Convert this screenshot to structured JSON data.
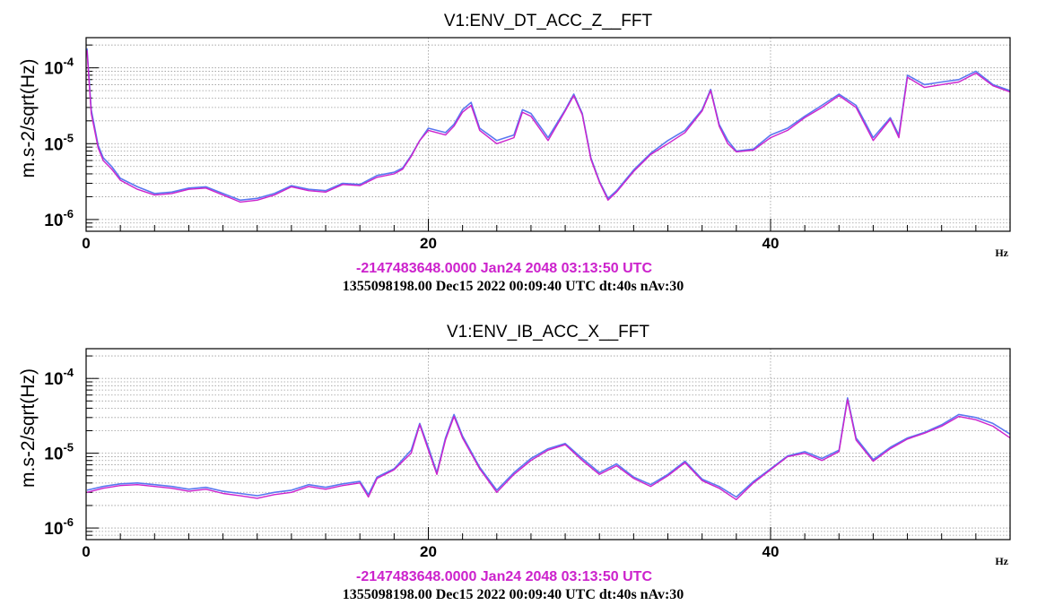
{
  "chart_data": [
    {
      "type": "line",
      "title": "V1:ENV_DT_ACC_Z__FFT",
      "ylabel": "m.s-2/sqrt(Hz)",
      "xunit": "Hz",
      "xlim": [
        0,
        54
      ],
      "ylim": [
        7e-07,
        0.00025
      ],
      "yscale": "log",
      "grid": true,
      "x_ticks": [
        {
          "value": 0,
          "label": "0"
        },
        {
          "value": 20,
          "label": "20"
        },
        {
          "value": 40,
          "label": "40"
        }
      ],
      "y_ticks": [
        {
          "value": 1e-06,
          "base": "10",
          "exp": "-6"
        },
        {
          "value": 1e-05,
          "base": "10",
          "exp": "-5"
        },
        {
          "value": 0.0001,
          "base": "10",
          "exp": "-4"
        }
      ],
      "caption_line1": "-2147483648.0000 Jan24 2048 03:13:50 UTC",
      "caption_line2": "1355098198.00 Dec15 2022 00:09:40 UTC dt:40s nAv:30",
      "colors": {
        "reference": "#5a78f0",
        "current": "#cc22cc"
      },
      "series": [
        {
          "x": [
            0.05,
            0.3,
            0.7,
            1,
            1.5,
            2,
            3,
            4,
            5,
            6,
            7,
            8,
            9,
            10,
            11,
            12,
            13,
            14,
            15,
            16,
            17,
            18,
            18.5,
            19,
            19.5,
            20,
            21,
            21.5,
            22,
            22.5,
            23,
            24,
            25,
            25.5,
            26,
            27,
            28,
            28.5,
            29,
            29.5,
            30,
            30.5,
            31,
            32,
            33,
            34,
            35,
            36,
            36.5,
            37,
            37.5,
            38,
            39,
            40,
            41,
            42,
            43,
            44,
            45,
            46,
            47,
            47.5,
            48,
            49,
            50,
            51,
            52,
            53,
            54
          ],
          "y": [
            0.00018,
            2.8e-05,
            9.5e-06,
            6.5e-06,
            5e-06,
            3.5e-06,
            2.7e-06,
            2.2e-06,
            2.3e-06,
            2.6e-06,
            2.7e-06,
            2.2e-06,
            1.8e-06,
            1.9e-06,
            2.2e-06,
            2.8e-06,
            2.5e-06,
            2.4e-06,
            3e-06,
            2.9e-06,
            3.8e-06,
            4.2e-06,
            4.8e-06,
            7e-06,
            1.1e-05,
            1.6e-05,
            1.4e-05,
            1.8e-05,
            2.8e-05,
            3.5e-05,
            1.6e-05,
            1.1e-05,
            1.3e-05,
            2.8e-05,
            2.5e-05,
            1.2e-05,
            2.8e-05,
            4.5e-05,
            2.5e-05,
            6.5e-06,
            3.2e-06,
            1.9e-06,
            2.4e-06,
            4.5e-06,
            7.5e-06,
            1.1e-05,
            1.5e-05,
            2.8e-05,
            5.2e-05,
            1.8e-05,
            1.1e-05,
            8e-06,
            8.5e-06,
            1.3e-05,
            1.6e-05,
            2.3e-05,
            3.2e-05,
            4.5e-05,
            3.2e-05,
            1.2e-05,
            2.2e-05,
            1.3e-05,
            8e-05,
            6e-05,
            6.5e-05,
            7e-05,
            9e-05,
            6e-05,
            5e-05
          ]
        },
        {
          "x": [
            0.05,
            0.3,
            0.7,
            1,
            1.5,
            2,
            3,
            4,
            5,
            6,
            7,
            8,
            9,
            10,
            11,
            12,
            13,
            14,
            15,
            16,
            17,
            18,
            18.5,
            19,
            19.5,
            20,
            21,
            21.5,
            22,
            22.5,
            23,
            24,
            25,
            25.5,
            26,
            27,
            28,
            28.5,
            29,
            29.5,
            30,
            30.5,
            31,
            32,
            33,
            34,
            35,
            36,
            36.5,
            37,
            37.5,
            38,
            39,
            40,
            41,
            42,
            43,
            44,
            45,
            46,
            47,
            47.5,
            48,
            49,
            50,
            51,
            52,
            53,
            54
          ],
          "y": [
            0.00017,
            2.5e-05,
            8.8e-06,
            6e-06,
            4.6e-06,
            3.3e-06,
            2.5e-06,
            2.1e-06,
            2.2e-06,
            2.5e-06,
            2.6e-06,
            2.1e-06,
            1.7e-06,
            1.8e-06,
            2.1e-06,
            2.7e-06,
            2.4e-06,
            2.3e-06,
            2.9e-06,
            2.8e-06,
            3.6e-06,
            4e-06,
            4.6e-06,
            6.8e-06,
            1.1e-05,
            1.5e-05,
            1.3e-05,
            1.7e-05,
            2.6e-05,
            3.2e-05,
            1.5e-05,
            1e-05,
            1.2e-05,
            2.6e-05,
            2.3e-05,
            1.1e-05,
            2.7e-05,
            4.3e-05,
            2.4e-05,
            6.2e-06,
            3.1e-06,
            1.8e-06,
            2.3e-06,
            4.3e-06,
            7.2e-06,
            1e-05,
            1.4e-05,
            2.7e-05,
            5e-05,
            1.7e-05,
            1e-05,
            7.8e-06,
            8.2e-06,
            1.2e-05,
            1.5e-05,
            2.2e-05,
            3e-05,
            4.3e-05,
            3e-05,
            1.1e-05,
            2.1e-05,
            1.2e-05,
            7.5e-05,
            5.5e-05,
            6e-05,
            6.5e-05,
            8.5e-05,
            5.8e-05,
            4.8e-05
          ]
        }
      ]
    },
    {
      "type": "line",
      "title": "V1:ENV_IB_ACC_X__FFT",
      "ylabel": "m.s-2/sqrt(Hz)",
      "xunit": "Hz",
      "xlim": [
        0,
        54
      ],
      "ylim": [
        7e-07,
        0.00025
      ],
      "yscale": "log",
      "grid": true,
      "x_ticks": [
        {
          "value": 0,
          "label": "0"
        },
        {
          "value": 20,
          "label": "20"
        },
        {
          "value": 40,
          "label": "40"
        }
      ],
      "y_ticks": [
        {
          "value": 1e-06,
          "base": "10",
          "exp": "-6"
        },
        {
          "value": 1e-05,
          "base": "10",
          "exp": "-5"
        },
        {
          "value": 0.0001,
          "base": "10",
          "exp": "-4"
        }
      ],
      "caption_line1": "-2147483648.0000 Jan24 2048 03:13:50 UTC",
      "caption_line2": "1355098198.00 Dec15 2022 00:09:40 UTC dt:40s nAv:30",
      "colors": {
        "reference": "#5a78f0",
        "current": "#cc22cc"
      },
      "series": [
        {
          "x": [
            0.05,
            1,
            2,
            3,
            4,
            5,
            6,
            7,
            8,
            9,
            10,
            11,
            12,
            13,
            14,
            15,
            16,
            16.5,
            17,
            18,
            19,
            19.5,
            20,
            20.5,
            21,
            21.5,
            22,
            23,
            24,
            25,
            26,
            27,
            28,
            29,
            30,
            31,
            32,
            33,
            34,
            35,
            36,
            37,
            38,
            39,
            40,
            41,
            42,
            43,
            44,
            44.5,
            45,
            46,
            47,
            48,
            49,
            50,
            51,
            52,
            53,
            54
          ],
          "y": [
            3.2e-06,
            3.6e-06,
            3.9e-06,
            4e-06,
            3.8e-06,
            3.6e-06,
            3.3e-06,
            3.5e-06,
            3.1e-06,
            2.9e-06,
            2.7e-06,
            3e-06,
            3.2e-06,
            3.8e-06,
            3.5e-06,
            3.9e-06,
            4.2e-06,
            2.8e-06,
            4.8e-06,
            6.2e-06,
            1.1e-05,
            2.5e-05,
            1.2e-05,
            5.5e-06,
            1.6e-05,
            3.3e-05,
            1.7e-05,
            6.5e-06,
            3.2e-06,
            5.5e-06,
            8.5e-06,
            1.15e-05,
            1.35e-05,
            8.5e-06,
            5.5e-06,
            7.2e-06,
            4.8e-06,
            3.8e-06,
            5.2e-06,
            7.8e-06,
            4.5e-06,
            3.6e-06,
            2.6e-06,
            4.2e-06,
            6.2e-06,
            9.2e-06,
            1.05e-05,
            8.5e-06,
            1.1e-05,
            5.5e-05,
            1.6e-05,
            8.2e-06,
            1.2e-05,
            1.6e-05,
            1.9e-05,
            2.4e-05,
            3.3e-05,
            3e-05,
            2.5e-05,
            1.8e-05
          ]
        },
        {
          "x": [
            0.05,
            1,
            2,
            3,
            4,
            5,
            6,
            7,
            8,
            9,
            10,
            11,
            12,
            13,
            14,
            15,
            16,
            16.5,
            17,
            18,
            19,
            19.5,
            20,
            20.5,
            21,
            21.5,
            22,
            23,
            24,
            25,
            26,
            27,
            28,
            29,
            30,
            31,
            32,
            33,
            34,
            35,
            36,
            37,
            38,
            39,
            40,
            41,
            42,
            43,
            44,
            44.5,
            45,
            46,
            47,
            48,
            49,
            50,
            51,
            52,
            53,
            54
          ],
          "y": [
            3e-06,
            3.4e-06,
            3.7e-06,
            3.8e-06,
            3.6e-06,
            3.4e-06,
            3.1e-06,
            3.3e-06,
            2.9e-06,
            2.7e-06,
            2.5e-06,
            2.8e-06,
            3e-06,
            3.6e-06,
            3.3e-06,
            3.7e-06,
            4e-06,
            2.6e-06,
            4.6e-06,
            6e-06,
            1e-05,
            2.4e-05,
            1.1e-05,
            5.2e-06,
            1.5e-05,
            3.1e-05,
            1.6e-05,
            6.2e-06,
            3e-06,
            5.2e-06,
            8e-06,
            1.1e-05,
            1.3e-05,
            8e-06,
            5.2e-06,
            6.8e-06,
            4.6e-06,
            3.6e-06,
            5e-06,
            7.5e-06,
            4.3e-06,
            3.4e-06,
            2.4e-06,
            4e-06,
            6e-06,
            9e-06,
            1e-05,
            8e-06,
            1.05e-05,
            5.2e-05,
            1.5e-05,
            7.8e-06,
            1.15e-05,
            1.55e-05,
            1.85e-05,
            2.3e-05,
            3.1e-05,
            2.8e-05,
            2.3e-05,
            1.6e-05
          ]
        }
      ]
    }
  ]
}
